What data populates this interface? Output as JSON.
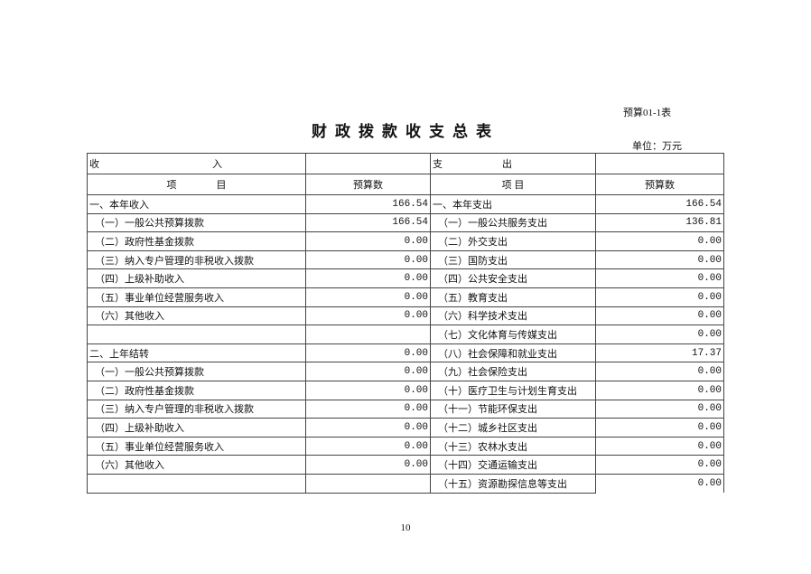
{
  "form_no": "预算01-1表",
  "title": "财政拨款收支总表",
  "unit": "单位：万元",
  "header": {
    "income_a": "收",
    "income_b": "入",
    "expense_a": "支",
    "expense_b": "出",
    "item_income": "项　　　　目",
    "budget": "预算数",
    "item_expense": "项 目"
  },
  "rows": [
    {
      "in_item": "一、本年收入",
      "in_val": "166.54",
      "out_item": "一、本年支出",
      "out_val": "166.54"
    },
    {
      "in_item": "（一）一般公共预算拨款",
      "in_val": "166.54",
      "out_item": "（一）一般公共服务支出",
      "out_val": "136.81"
    },
    {
      "in_item": "（二）政府性基金拨款",
      "in_val": "0.00",
      "out_item": "（二）外交支出",
      "out_val": "0.00"
    },
    {
      "in_item": "（三）纳入专户管理的非税收入拨款",
      "in_val": "0.00",
      "out_item": "（三）国防支出",
      "out_val": "0.00"
    },
    {
      "in_item": "（四）上级补助收入",
      "in_val": "0.00",
      "out_item": "（四）公共安全支出",
      "out_val": "0.00"
    },
    {
      "in_item": "（五）事业单位经营服务收入",
      "in_val": "0.00",
      "out_item": "（五）教育支出",
      "out_val": "0.00"
    },
    {
      "in_item": "（六）其他收入",
      "in_val": "0.00",
      "out_item": "（六）科学技术支出",
      "out_val": "0.00"
    },
    {
      "in_item": "",
      "in_val": "",
      "out_item": "（七）文化体育与传媒支出",
      "out_val": "0.00"
    },
    {
      "in_item": "二、上年结转",
      "in_val": "0.00",
      "out_item": "（八）社会保障和就业支出",
      "out_val": "17.37"
    },
    {
      "in_item": "（一）一般公共预算拨款",
      "in_val": "0.00",
      "out_item": "（九）社会保险支出",
      "out_val": "0.00"
    },
    {
      "in_item": "（二）政府性基金拨款",
      "in_val": "0.00",
      "out_item": "（十）医疗卫生与计划生育支出",
      "out_val": "0.00"
    },
    {
      "in_item": "（三）纳入专户管理的非税收入拨款",
      "in_val": "0.00",
      "out_item": "（十一）节能环保支出",
      "out_val": "0.00"
    },
    {
      "in_item": "（四）上级补助收入",
      "in_val": "0.00",
      "out_item": "（十二）城乡社区支出",
      "out_val": "0.00"
    },
    {
      "in_item": "（五）事业单位经营服务收入",
      "in_val": "0.00",
      "out_item": "（十三）农林水支出",
      "out_val": "0.00"
    },
    {
      "in_item": "（六）其他收入",
      "in_val": "0.00",
      "out_item": "（十四）交通运输支出",
      "out_val": "0.00"
    },
    {
      "in_item": "",
      "in_val": "",
      "out_item": "（十五）资源勘探信息等支出",
      "out_val": "0.00"
    }
  ],
  "page_number": "10"
}
